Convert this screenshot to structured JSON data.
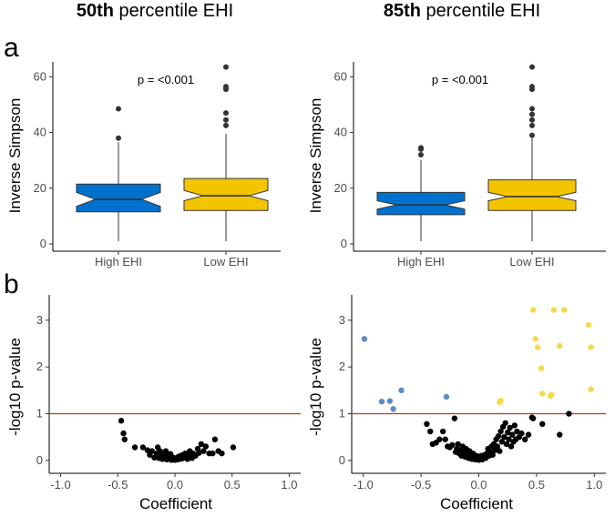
{
  "figure_titles": [
    {
      "bold": "50th",
      "rest": " percentile EHI"
    },
    {
      "bold": "85th",
      "rest": " percentile EHI"
    }
  ],
  "panel_labels": [
    "a",
    "b"
  ],
  "colors": {
    "high": "#0072CE",
    "low": "#F2C500",
    "sig_low": "#5B8DC2",
    "sig_high": "#F7D94C",
    "nonsig": "#000000",
    "threshold": "#D62728"
  },
  "chart_data": [
    {
      "type": "box",
      "panel": "a",
      "title": "50th percentile EHI",
      "categories": [
        "High EHI",
        "Low EHI"
      ],
      "ylabel": "Inverse Simpson",
      "xlabel": "",
      "ylim": [
        0,
        66
      ],
      "yticks": [
        0,
        20,
        40,
        60
      ],
      "annotation": "p = <0.001",
      "series": [
        {
          "name": "High EHI",
          "q1": 11.5,
          "median": 16,
          "q3": 21.5,
          "whisker_low": 1,
          "whisker_high": 36.5,
          "notch": [
            13.5,
            18.5
          ],
          "outliers": [
            38,
            48.5
          ]
        },
        {
          "name": "Low EHI",
          "q1": 12,
          "median": 17.3,
          "q3": 23.5,
          "whisker_low": 1,
          "whisker_high": 39.5,
          "notch": [
            15.5,
            19.2
          ],
          "outliers": [
            42.5,
            44.5,
            47,
            55.5,
            56.5,
            63.5
          ]
        }
      ]
    },
    {
      "type": "box",
      "panel": "a",
      "title": "85th percentile EHI",
      "categories": [
        "High EHI",
        "Low EHI"
      ],
      "ylabel": "Inverse Simpson",
      "xlabel": "",
      "ylim": [
        0,
        66
      ],
      "yticks": [
        0,
        20,
        40,
        60
      ],
      "annotation": "p = <0.001",
      "series": [
        {
          "name": "High EHI",
          "q1": 10.5,
          "median": 14,
          "q3": 18.5,
          "whisker_low": 1,
          "whisker_high": 30,
          "notch": [
            12.5,
            15.5
          ],
          "outliers": [
            32,
            34,
            34.5
          ]
        },
        {
          "name": "Low EHI",
          "q1": 12,
          "median": 17,
          "q3": 23,
          "whisker_low": 1,
          "whisker_high": 38.5,
          "notch": [
            15.5,
            18.5
          ],
          "outliers": [
            39,
            42.5,
            44.5,
            46.5,
            48.5,
            55.5,
            56.5,
            63.5
          ]
        }
      ]
    },
    {
      "type": "scatter",
      "panel": "b",
      "title": "50th percentile EHI",
      "xlabel": "Coefficient",
      "ylabel": "-log10 p-value",
      "xlim": [
        -1.1,
        1.1
      ],
      "ylim": [
        -0.1,
        3.6
      ],
      "xticks": [
        -1.0,
        -0.5,
        0.0,
        0.5,
        1.0
      ],
      "yticks": [
        0,
        1,
        2,
        3
      ],
      "threshold": 1,
      "series": [
        {
          "name": "nonsignificant",
          "points": [
            [
              -0.47,
              0.85
            ],
            [
              -0.45,
              0.58
            ],
            [
              -0.44,
              0.45
            ],
            [
              -0.35,
              0.28
            ],
            [
              -0.28,
              0.28
            ],
            [
              -0.24,
              0.22
            ],
            [
              -0.22,
              0.12
            ],
            [
              -0.2,
              0.2
            ],
            [
              -0.18,
              0.06
            ],
            [
              -0.16,
              0.15
            ],
            [
              -0.15,
              0.28
            ],
            [
              -0.14,
              0.05
            ],
            [
              -0.13,
              0.2
            ],
            [
              -0.12,
              0.1
            ],
            [
              -0.11,
              0.03
            ],
            [
              -0.1,
              0.15
            ],
            [
              -0.09,
              0.08
            ],
            [
              -0.08,
              0.2
            ],
            [
              -0.07,
              0.02
            ],
            [
              -0.06,
              0.1
            ],
            [
              -0.05,
              0.05
            ],
            [
              -0.04,
              0.14
            ],
            [
              -0.03,
              0.01
            ],
            [
              -0.02,
              0.07
            ],
            [
              -0.01,
              0.03
            ],
            [
              0.0,
              0.01
            ],
            [
              0.01,
              0.05
            ],
            [
              0.02,
              0.02
            ],
            [
              0.03,
              0.08
            ],
            [
              0.04,
              0.03
            ],
            [
              0.05,
              0.1
            ],
            [
              0.06,
              0.04
            ],
            [
              0.07,
              0.12
            ],
            [
              0.08,
              0.06
            ],
            [
              0.09,
              0.15
            ],
            [
              0.1,
              0.08
            ],
            [
              0.11,
              0.03
            ],
            [
              0.12,
              0.12
            ],
            [
              0.13,
              0.2
            ],
            [
              0.14,
              0.1
            ],
            [
              0.15,
              0.05
            ],
            [
              0.16,
              0.15
            ],
            [
              0.18,
              0.1
            ],
            [
              0.2,
              0.25
            ],
            [
              0.21,
              0.16
            ],
            [
              0.23,
              0.35
            ],
            [
              0.25,
              0.2
            ],
            [
              0.27,
              0.3
            ],
            [
              0.3,
              0.15
            ],
            [
              0.33,
              0.15
            ],
            [
              0.35,
              0.45
            ],
            [
              0.38,
              0.2
            ],
            [
              0.41,
              0.15
            ],
            [
              0.51,
              0.28
            ]
          ]
        }
      ]
    },
    {
      "type": "scatter",
      "panel": "b",
      "title": "85th percentile EHI",
      "xlabel": "Coefficient",
      "ylabel": "-log10 p-value",
      "xlim": [
        -1.1,
        1.1
      ],
      "ylim": [
        -0.1,
        3.6
      ],
      "xticks": [
        -1.0,
        -0.5,
        0.0,
        0.5,
        1.0
      ],
      "yticks": [
        0,
        1,
        2,
        3
      ],
      "threshold": 1,
      "series": [
        {
          "name": "significant-low",
          "points": [
            [
              -0.99,
              2.6
            ],
            [
              -0.84,
              1.26
            ],
            [
              -0.77,
              1.27
            ],
            [
              -0.74,
              1.1
            ],
            [
              -0.67,
              1.5
            ],
            [
              -0.28,
              1.36
            ]
          ]
        },
        {
          "name": "significant-high",
          "points": [
            [
              0.18,
              1.25
            ],
            [
              0.19,
              1.28
            ],
            [
              0.47,
              3.22
            ],
            [
              0.49,
              2.6
            ],
            [
              0.51,
              2.42
            ],
            [
              0.54,
              1.97
            ],
            [
              0.55,
              1.43
            ],
            [
              0.62,
              1.38
            ],
            [
              0.63,
              1.4
            ],
            [
              0.65,
              3.22
            ],
            [
              0.7,
              2.45
            ],
            [
              0.74,
              3.22
            ],
            [
              0.95,
              2.9
            ],
            [
              0.97,
              2.42
            ],
            [
              0.97,
              1.52
            ]
          ]
        },
        {
          "name": "nonsignificant",
          "points": [
            [
              -0.45,
              0.78
            ],
            [
              -0.42,
              0.62
            ],
            [
              -0.4,
              0.35
            ],
            [
              -0.37,
              0.38
            ],
            [
              -0.34,
              0.45
            ],
            [
              -0.31,
              0.62
            ],
            [
              -0.29,
              0.45
            ],
            [
              -0.27,
              0.3
            ],
            [
              -0.25,
              0.28
            ],
            [
              -0.23,
              0.33
            ],
            [
              -0.21,
              0.9
            ],
            [
              -0.2,
              0.18
            ],
            [
              -0.19,
              0.25
            ],
            [
              -0.18,
              0.35
            ],
            [
              -0.17,
              0.15
            ],
            [
              -0.16,
              0.22
            ],
            [
              -0.15,
              0.1
            ],
            [
              -0.14,
              0.3
            ],
            [
              -0.13,
              0.18
            ],
            [
              -0.12,
              0.08
            ],
            [
              -0.11,
              0.25
            ],
            [
              -0.1,
              0.14
            ],
            [
              -0.09,
              0.05
            ],
            [
              -0.08,
              0.2
            ],
            [
              -0.07,
              0.1
            ],
            [
              -0.06,
              0.03
            ],
            [
              -0.05,
              0.15
            ],
            [
              -0.04,
              0.07
            ],
            [
              -0.03,
              0.02
            ],
            [
              -0.02,
              0.1
            ],
            [
              -0.01,
              0.05
            ],
            [
              0.0,
              0.01
            ],
            [
              0.01,
              0.04
            ],
            [
              0.02,
              0.1
            ],
            [
              0.03,
              0.02
            ],
            [
              0.04,
              0.07
            ],
            [
              0.05,
              0.12
            ],
            [
              0.06,
              0.05
            ],
            [
              0.07,
              0.15
            ],
            [
              0.08,
              0.25
            ],
            [
              0.09,
              0.1
            ],
            [
              0.1,
              0.18
            ],
            [
              0.11,
              0.3
            ],
            [
              0.12,
              0.12
            ],
            [
              0.13,
              0.35
            ],
            [
              0.14,
              0.22
            ],
            [
              0.15,
              0.45
            ],
            [
              0.16,
              0.3
            ],
            [
              0.17,
              0.52
            ],
            [
              0.18,
              0.2
            ],
            [
              0.19,
              0.62
            ],
            [
              0.2,
              0.4
            ],
            [
              0.21,
              0.72
            ],
            [
              0.22,
              0.5
            ],
            [
              0.23,
              0.8
            ],
            [
              0.24,
              0.35
            ],
            [
              0.25,
              0.6
            ],
            [
              0.26,
              0.45
            ],
            [
              0.27,
              0.7
            ],
            [
              0.28,
              0.3
            ],
            [
              0.29,
              0.55
            ],
            [
              0.3,
              0.4
            ],
            [
              0.31,
              0.75
            ],
            [
              0.32,
              0.45
            ],
            [
              0.33,
              0.62
            ],
            [
              0.35,
              0.5
            ],
            [
              0.37,
              0.58
            ],
            [
              0.4,
              0.45
            ],
            [
              0.43,
              0.55
            ],
            [
              0.46,
              0.92
            ],
            [
              0.47,
              0.9
            ],
            [
              0.55,
              0.78
            ],
            [
              0.7,
              0.55
            ],
            [
              0.78,
              1.0
            ]
          ]
        }
      ]
    }
  ]
}
